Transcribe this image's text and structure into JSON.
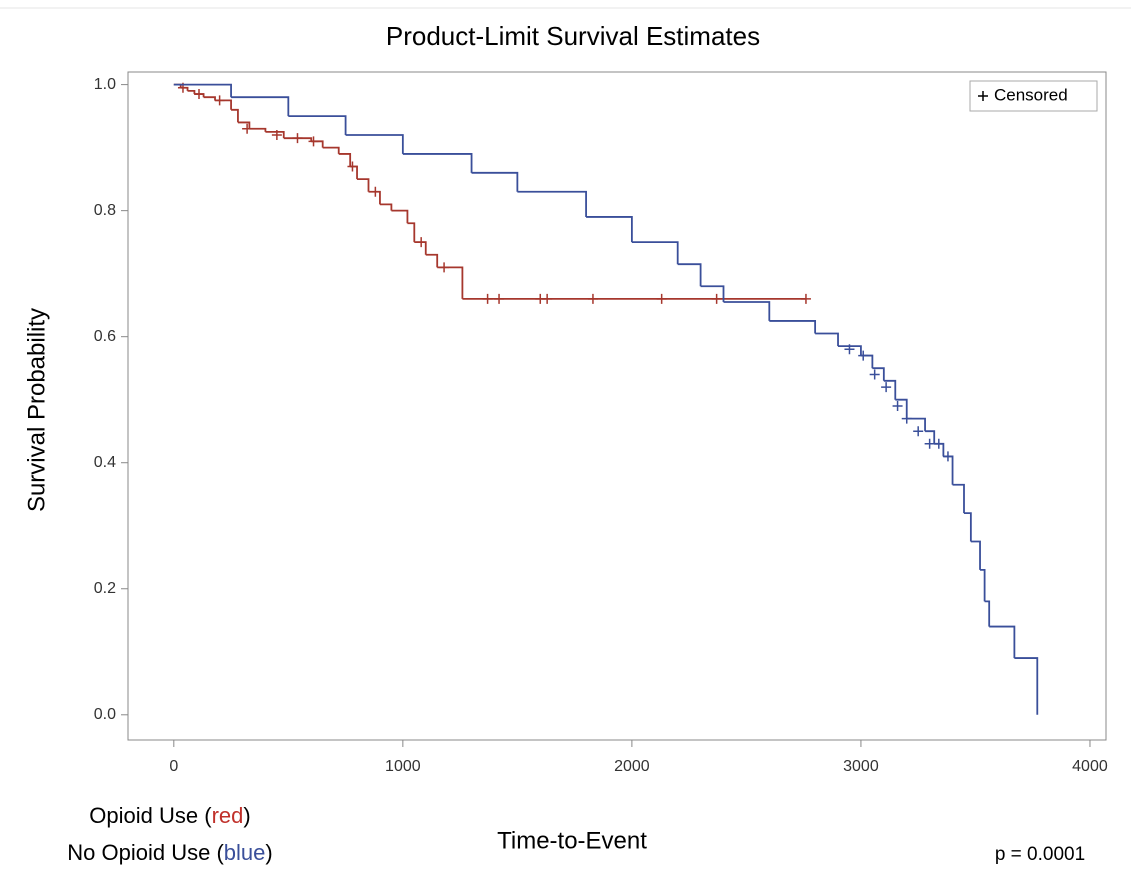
{
  "chart_data": {
    "type": "step",
    "title": "Product-Limit Survival Estimates",
    "xlabel": "Time-to-Event",
    "ylabel": "Survival Probability",
    "legend_label": "Censored",
    "legend_position": "top-right",
    "grid": false,
    "xlim": [
      -200,
      4070
    ],
    "ylim": [
      -0.04,
      1.02
    ],
    "xticks": [
      0,
      1000,
      2000,
      3000,
      4000
    ],
    "yticks": [
      {
        "value": 0,
        "label": "0.0"
      },
      0.2,
      0.4,
      0.6,
      0.8,
      {
        "value": 1,
        "label": "1.0"
      }
    ],
    "series": [
      {
        "name": "Opioid Use",
        "color": "#a6372d",
        "x": [
          0,
          30,
          60,
          90,
          130,
          180,
          250,
          280,
          330,
          400,
          480,
          600,
          650,
          720,
          770,
          800,
          850,
          900,
          950,
          1020,
          1050,
          1100,
          1150,
          1260,
          2760
        ],
        "values": [
          1.0,
          0.995,
          0.99,
          0.985,
          0.98,
          0.975,
          0.96,
          0.94,
          0.93,
          0.925,
          0.915,
          0.91,
          0.9,
          0.89,
          0.87,
          0.85,
          0.83,
          0.81,
          0.8,
          0.78,
          0.75,
          0.73,
          0.71,
          0.66,
          0.66
        ],
        "censored_x": [
          40,
          110,
          200,
          320,
          450,
          540,
          610,
          780,
          880,
          1080,
          1180,
          1370,
          1420,
          1600,
          1630,
          1830,
          2130,
          2370,
          2760
        ],
        "censored_values": [
          0.995,
          0.985,
          0.975,
          0.93,
          0.92,
          0.915,
          0.91,
          0.87,
          0.83,
          0.75,
          0.71,
          0.66,
          0.66,
          0.66,
          0.66,
          0.66,
          0.66,
          0.66,
          0.66
        ]
      },
      {
        "name": "No Opioid Use",
        "color": "#3a4f9a",
        "x": [
          0,
          250,
          500,
          750,
          1000,
          1300,
          1500,
          1800,
          2000,
          2200,
          2300,
          2400,
          2600,
          2800,
          2900,
          3000,
          3050,
          3100,
          3150,
          3200,
          3280,
          3320,
          3360,
          3400,
          3450,
          3480,
          3520,
          3540,
          3560,
          3670,
          3770
        ],
        "values": [
          1.0,
          0.98,
          0.95,
          0.92,
          0.89,
          0.86,
          0.83,
          0.79,
          0.75,
          0.715,
          0.68,
          0.655,
          0.625,
          0.605,
          0.585,
          0.57,
          0.55,
          0.53,
          0.5,
          0.47,
          0.45,
          0.43,
          0.41,
          0.365,
          0.32,
          0.275,
          0.23,
          0.18,
          0.14,
          0.09,
          0.0
        ],
        "censored_x": [
          2950,
          3010,
          3060,
          3110,
          3160,
          3200,
          3250,
          3300,
          3340,
          3380
        ],
        "censored_values": [
          0.58,
          0.57,
          0.54,
          0.52,
          0.49,
          0.47,
          0.45,
          0.43,
          0.43,
          0.41
        ]
      }
    ],
    "annotations": [
      {
        "parts": [
          "Opioid Use (",
          "red",
          ")"
        ],
        "color": "#c0302a"
      },
      {
        "parts": [
          "No Opioid Use (",
          "blue",
          ")"
        ],
        "color": "#3a4f9a"
      },
      {
        "text": "p = 0.0001"
      }
    ]
  }
}
